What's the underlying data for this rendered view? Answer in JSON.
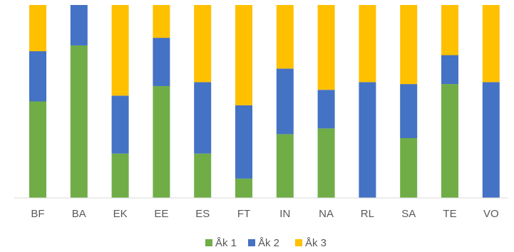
{
  "chart_data": {
    "type": "bar",
    "stacked": true,
    "normalized": true,
    "categories": [
      "BF",
      "BA",
      "EK",
      "EE",
      "ES",
      "FT",
      "IN",
      "NA",
      "RL",
      "SA",
      "TE",
      "VO"
    ],
    "series": [
      {
        "name": "Åk 1",
        "color": "#70AD47",
        "values": [
          0.5,
          0.79,
          0.23,
          0.58,
          0.23,
          0.1,
          0.33,
          0.36,
          0.0,
          0.31,
          0.59,
          0.0
        ]
      },
      {
        "name": "Åk 2",
        "color": "#4472C4",
        "values": [
          0.26,
          0.21,
          0.3,
          0.25,
          0.37,
          0.38,
          0.34,
          0.2,
          0.6,
          0.28,
          0.15,
          0.6
        ]
      },
      {
        "name": "Åk 3",
        "color": "#FFC000",
        "values": [
          0.24,
          0.0,
          0.47,
          0.17,
          0.4,
          0.52,
          0.33,
          0.44,
          0.4,
          0.41,
          0.26,
          0.4
        ]
      }
    ],
    "ylim": [
      0,
      1
    ],
    "grid": false,
    "legend_position": "bottom"
  }
}
